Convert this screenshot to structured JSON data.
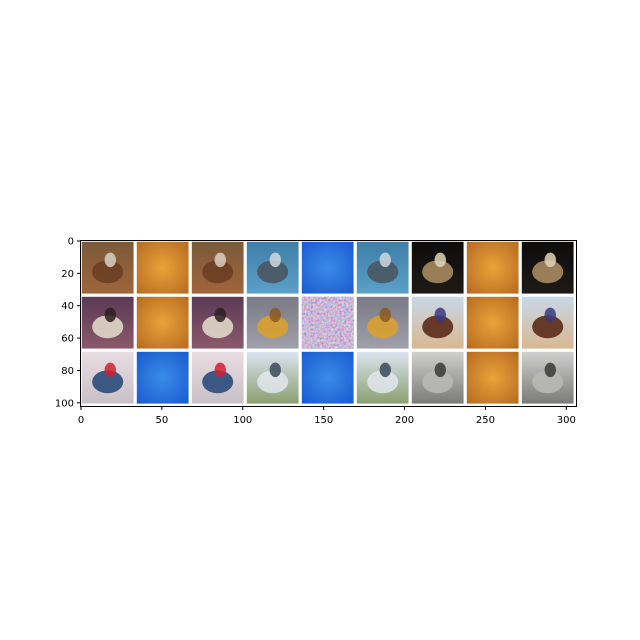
{
  "x_ticks": [
    "0",
    "50",
    "100",
    "150",
    "200",
    "250",
    "300"
  ],
  "y_ticks": [
    "0",
    "20",
    "40",
    "60",
    "80",
    "100"
  ],
  "grid": {
    "rows": 3,
    "cols": 9,
    "tiles": [
      {
        "name": "tile-horse-rider",
        "kind": "photo",
        "bg": [
          "#7a5a3a",
          "#a0653a"
        ],
        "subject": "#6b3f25",
        "accent": "#d9d0c4"
      },
      {
        "name": "tile-orange-blob",
        "kind": "blob",
        "bg": [
          "#e8a33a",
          "#b86a20"
        ]
      },
      {
        "name": "tile-horse-rider",
        "kind": "photo",
        "bg": [
          "#7a5a3a",
          "#a0653a"
        ],
        "subject": "#6b3f25",
        "accent": "#d9d0c4"
      },
      {
        "name": "tile-cat-blue",
        "kind": "photo",
        "bg": [
          "#3f7fa8",
          "#5aa0c8"
        ],
        "subject": "#4a5560",
        "accent": "#cfd8de"
      },
      {
        "name": "tile-blue-blob",
        "kind": "blob",
        "bg": [
          "#3a8ce8",
          "#1a5ad0"
        ]
      },
      {
        "name": "tile-cat-blue",
        "kind": "photo",
        "bg": [
          "#3f7fa8",
          "#5aa0c8"
        ],
        "subject": "#4a5560",
        "accent": "#cfd8de"
      },
      {
        "name": "tile-dog-face",
        "kind": "photo",
        "bg": [
          "#0d0d0d",
          "#1e1a16"
        ],
        "subject": "#a88a60",
        "accent": "#e2d4b8"
      },
      {
        "name": "tile-orange-blob",
        "kind": "blob",
        "bg": [
          "#e8a33a",
          "#b86a20"
        ]
      },
      {
        "name": "tile-dog-face",
        "kind": "photo",
        "bg": [
          "#0d0d0d",
          "#1e1a16"
        ],
        "subject": "#a88a60",
        "accent": "#e2d4b8"
      },
      {
        "name": "tile-cat-lying",
        "kind": "photo",
        "bg": [
          "#5a3a55",
          "#8a5a6a"
        ],
        "subject": "#e0d6c8",
        "accent": "#2a2020"
      },
      {
        "name": "tile-orange-blob",
        "kind": "blob",
        "bg": [
          "#e8a33a",
          "#b86a20"
        ]
      },
      {
        "name": "tile-cat-lying",
        "kind": "photo",
        "bg": [
          "#5a3a55",
          "#8a5a6a"
        ],
        "subject": "#e0d6c8",
        "accent": "#2a2020"
      },
      {
        "name": "tile-airplane-yellow",
        "kind": "photo",
        "bg": [
          "#7a7a86",
          "#a0a0aa"
        ],
        "subject": "#d9a030",
        "accent": "#8a5a20"
      },
      {
        "name": "tile-noise",
        "kind": "noise",
        "bg": [
          "#7a70b0",
          "#a070a0"
        ]
      },
      {
        "name": "tile-airplane-yellow",
        "kind": "photo",
        "bg": [
          "#7a7a86",
          "#a0a0aa"
        ],
        "subject": "#d9a030",
        "accent": "#8a5a20"
      },
      {
        "name": "tile-horse-rider-2",
        "kind": "photo",
        "bg": [
          "#c8d8e8",
          "#d8b890"
        ],
        "subject": "#5a2a1a",
        "accent": "#3a3a80"
      },
      {
        "name": "tile-orange-blob",
        "kind": "blob",
        "bg": [
          "#e8a33a",
          "#b86a20"
        ]
      },
      {
        "name": "tile-horse-rider-2",
        "kind": "photo",
        "bg": [
          "#c8d8e8",
          "#d8b890"
        ],
        "subject": "#5a2a1a",
        "accent": "#3a3a80"
      },
      {
        "name": "tile-car-blue",
        "kind": "photo",
        "bg": [
          "#e8dde0",
          "#c8c0c8"
        ],
        "subject": "#2a4a7a",
        "accent": "#d02030"
      },
      {
        "name": "tile-blue-blob",
        "kind": "blob",
        "bg": [
          "#3a8ce8",
          "#1a5ad0"
        ]
      },
      {
        "name": "tile-car-blue",
        "kind": "photo",
        "bg": [
          "#e8dde0",
          "#c8c0c8"
        ],
        "subject": "#2a4a7a",
        "accent": "#d02030"
      },
      {
        "name": "tile-airplane-field",
        "kind": "photo",
        "bg": [
          "#dce4f0",
          "#8aa070"
        ],
        "subject": "#e0e4ea",
        "accent": "#3a4a5a"
      },
      {
        "name": "tile-blue-blob",
        "kind": "blob",
        "bg": [
          "#3a8ce8",
          "#1a5ad0"
        ]
      },
      {
        "name": "tile-airplane-field",
        "kind": "photo",
        "bg": [
          "#dce4f0",
          "#8aa070"
        ],
        "subject": "#e0e4ea",
        "accent": "#3a4a5a"
      },
      {
        "name": "tile-truck-grey",
        "kind": "photo",
        "bg": [
          "#d0d0d0",
          "#7a7a78"
        ],
        "subject": "#b8b8b4",
        "accent": "#3a3a38"
      },
      {
        "name": "tile-orange-blob",
        "kind": "blob",
        "bg": [
          "#e8a33a",
          "#b86a20"
        ]
      },
      {
        "name": "tile-truck-grey",
        "kind": "photo",
        "bg": [
          "#d0d0d0",
          "#7a7a78"
        ],
        "subject": "#b8b8b4",
        "accent": "#3a3a38"
      }
    ]
  }
}
